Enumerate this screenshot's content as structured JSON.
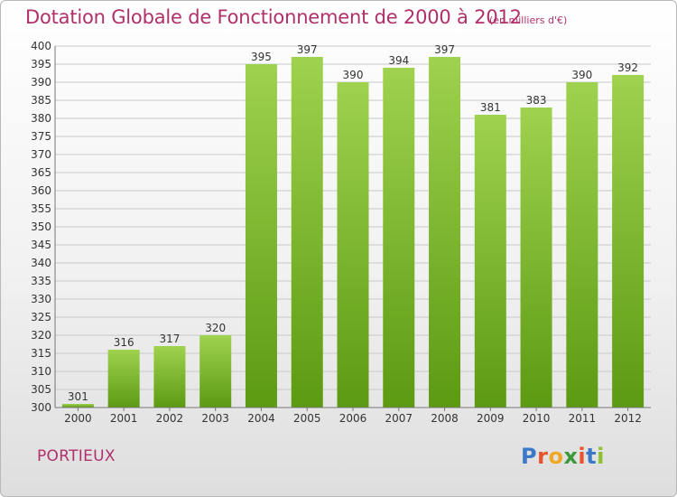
{
  "header": {
    "title": "Dotation Globale de Fonctionnement de 2000 à 2012",
    "subtitle": "(en milliers d'€)"
  },
  "footer": {
    "commune": "PORTIEUX",
    "logo_letters": [
      "P",
      "r",
      "o",
      "x",
      "i",
      "t",
      "i"
    ],
    "logo_colors": [
      "#3a78c8",
      "#e8542a",
      "#f0a820",
      "#3a9a3a",
      "#e8542a",
      "#3a78c8",
      "#8dbf2e"
    ]
  },
  "colors": {
    "bar_top": "#9fd24e",
    "bar_bottom": "#5c9a12",
    "grid": "#c9c9c9",
    "text": "#333333",
    "title": "#b0306a"
  },
  "chart_data": {
    "type": "bar",
    "categories": [
      "2000",
      "2001",
      "2002",
      "2003",
      "2004",
      "2005",
      "2006",
      "2007",
      "2008",
      "2009",
      "2010",
      "2011",
      "2012"
    ],
    "values": [
      301,
      316,
      317,
      320,
      395,
      397,
      390,
      394,
      397,
      381,
      383,
      390,
      392
    ],
    "data_labels": [
      "301",
      "316",
      "317",
      "320",
      "395",
      "397",
      "390",
      "394",
      "397",
      "381",
      "383",
      "390",
      "392"
    ],
    "yticks": [
      "300",
      "305",
      "310",
      "315",
      "320",
      "325",
      "330",
      "335",
      "340",
      "345",
      "350",
      "355",
      "360",
      "365",
      "370",
      "375",
      "380",
      "385",
      "390",
      "395",
      "400"
    ],
    "ylim": [
      300,
      400
    ],
    "grid": true,
    "legend": "none"
  }
}
